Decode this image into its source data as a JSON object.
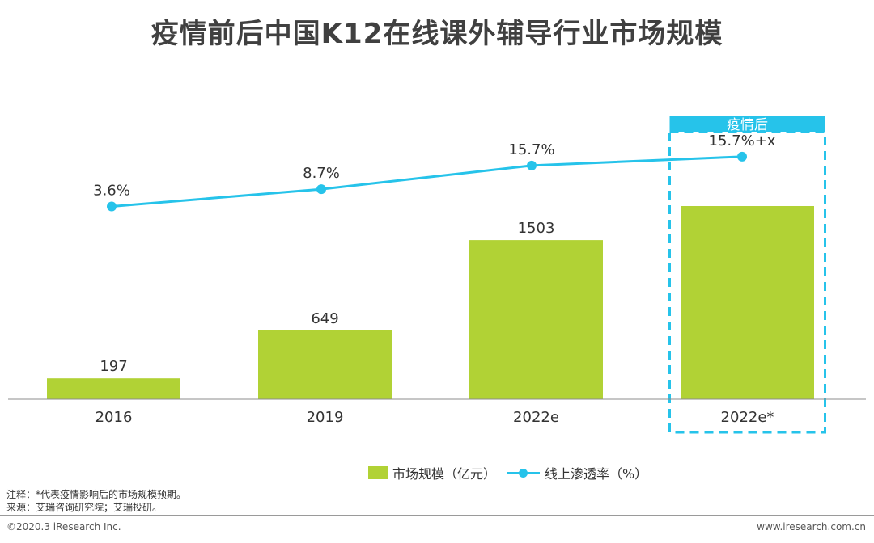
{
  "title": "疫情前后中国K12在线课外辅导行业市场规模",
  "chart_data": {
    "type": "bar",
    "categories": [
      "2016",
      "2019",
      "2022e",
      "2022e*"
    ],
    "series": [
      {
        "name": "市场规模（亿元）",
        "type": "bar",
        "values": [
          197,
          649,
          1503,
          null
        ],
        "labels": [
          "197",
          "649",
          "1503",
          ""
        ],
        "color": "#b1d235"
      },
      {
        "name": "线上渗透率（%）",
        "type": "line",
        "values": [
          3.6,
          8.7,
          15.7,
          15.7
        ],
        "labels": [
          "3.6%",
          "8.7%",
          "15.7%",
          "15.7%+x"
        ],
        "color": "#26c3ea"
      }
    ],
    "highlight": {
      "label": "疫情后",
      "category": "2022e*",
      "color": "#26c3ea"
    },
    "legend": {
      "position": "bottom-center",
      "items": [
        "市场规模（亿元）",
        "线上渗透率（%）"
      ]
    },
    "grid": false
  },
  "notes": [
    "注释：*代表疫情影响后的市场规模预期。",
    "来源：艾瑞咨询研究院；艾瑞投研。"
  ],
  "footer": {
    "left": "©2020.3 iResearch Inc.",
    "right": "www.iresearch.com.cn"
  }
}
